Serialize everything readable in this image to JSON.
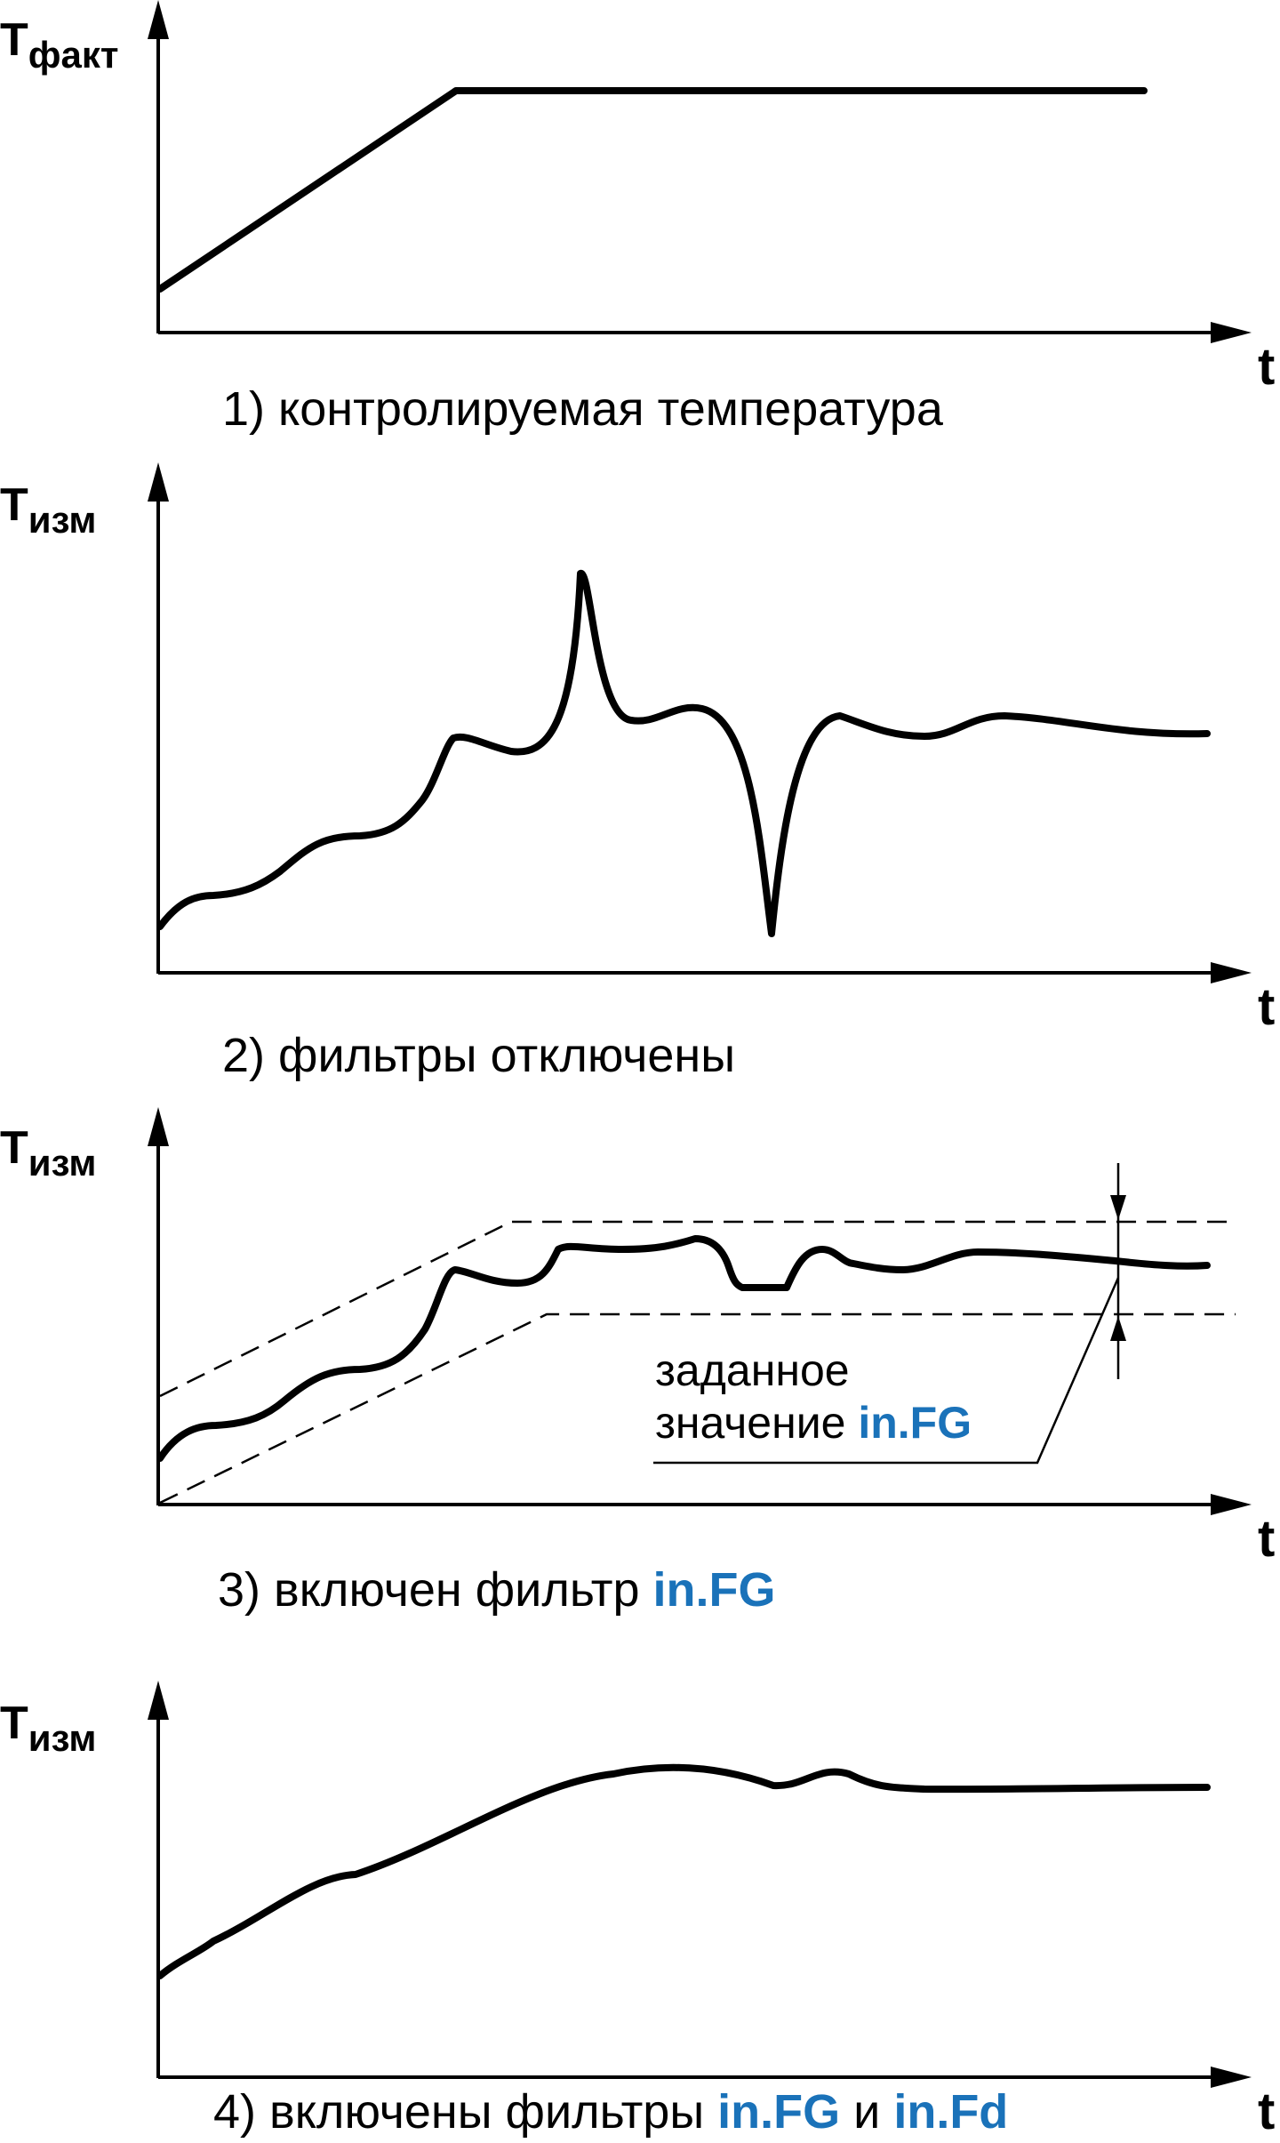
{
  "panels": [
    {
      "y_label_main": "T",
      "y_label_sub": "факт",
      "x_label": "t",
      "caption": "1) контролируемая температура",
      "caption_parts": []
    },
    {
      "y_label_main": "T",
      "y_label_sub": "изм",
      "x_label": "t",
      "caption": "2) фильтры отключены",
      "caption_parts": []
    },
    {
      "y_label_main": "T",
      "y_label_sub": "изм",
      "x_label": "t",
      "caption": "3) включен фильтр ",
      "caption_parts": [
        "in.FG"
      ],
      "annotation_line1": "заданное",
      "annotation_line2": "значение ",
      "annotation_highlight": "in.FG"
    },
    {
      "y_label_main": "T",
      "y_label_sub": "изм",
      "x_label": "t",
      "caption": "4) включены фильтры ",
      "caption_parts": [
        "in.FG",
        " и ",
        "in.Fd"
      ]
    }
  ],
  "colors": {
    "ink": "#000000",
    "highlight": "#1a72b9"
  }
}
